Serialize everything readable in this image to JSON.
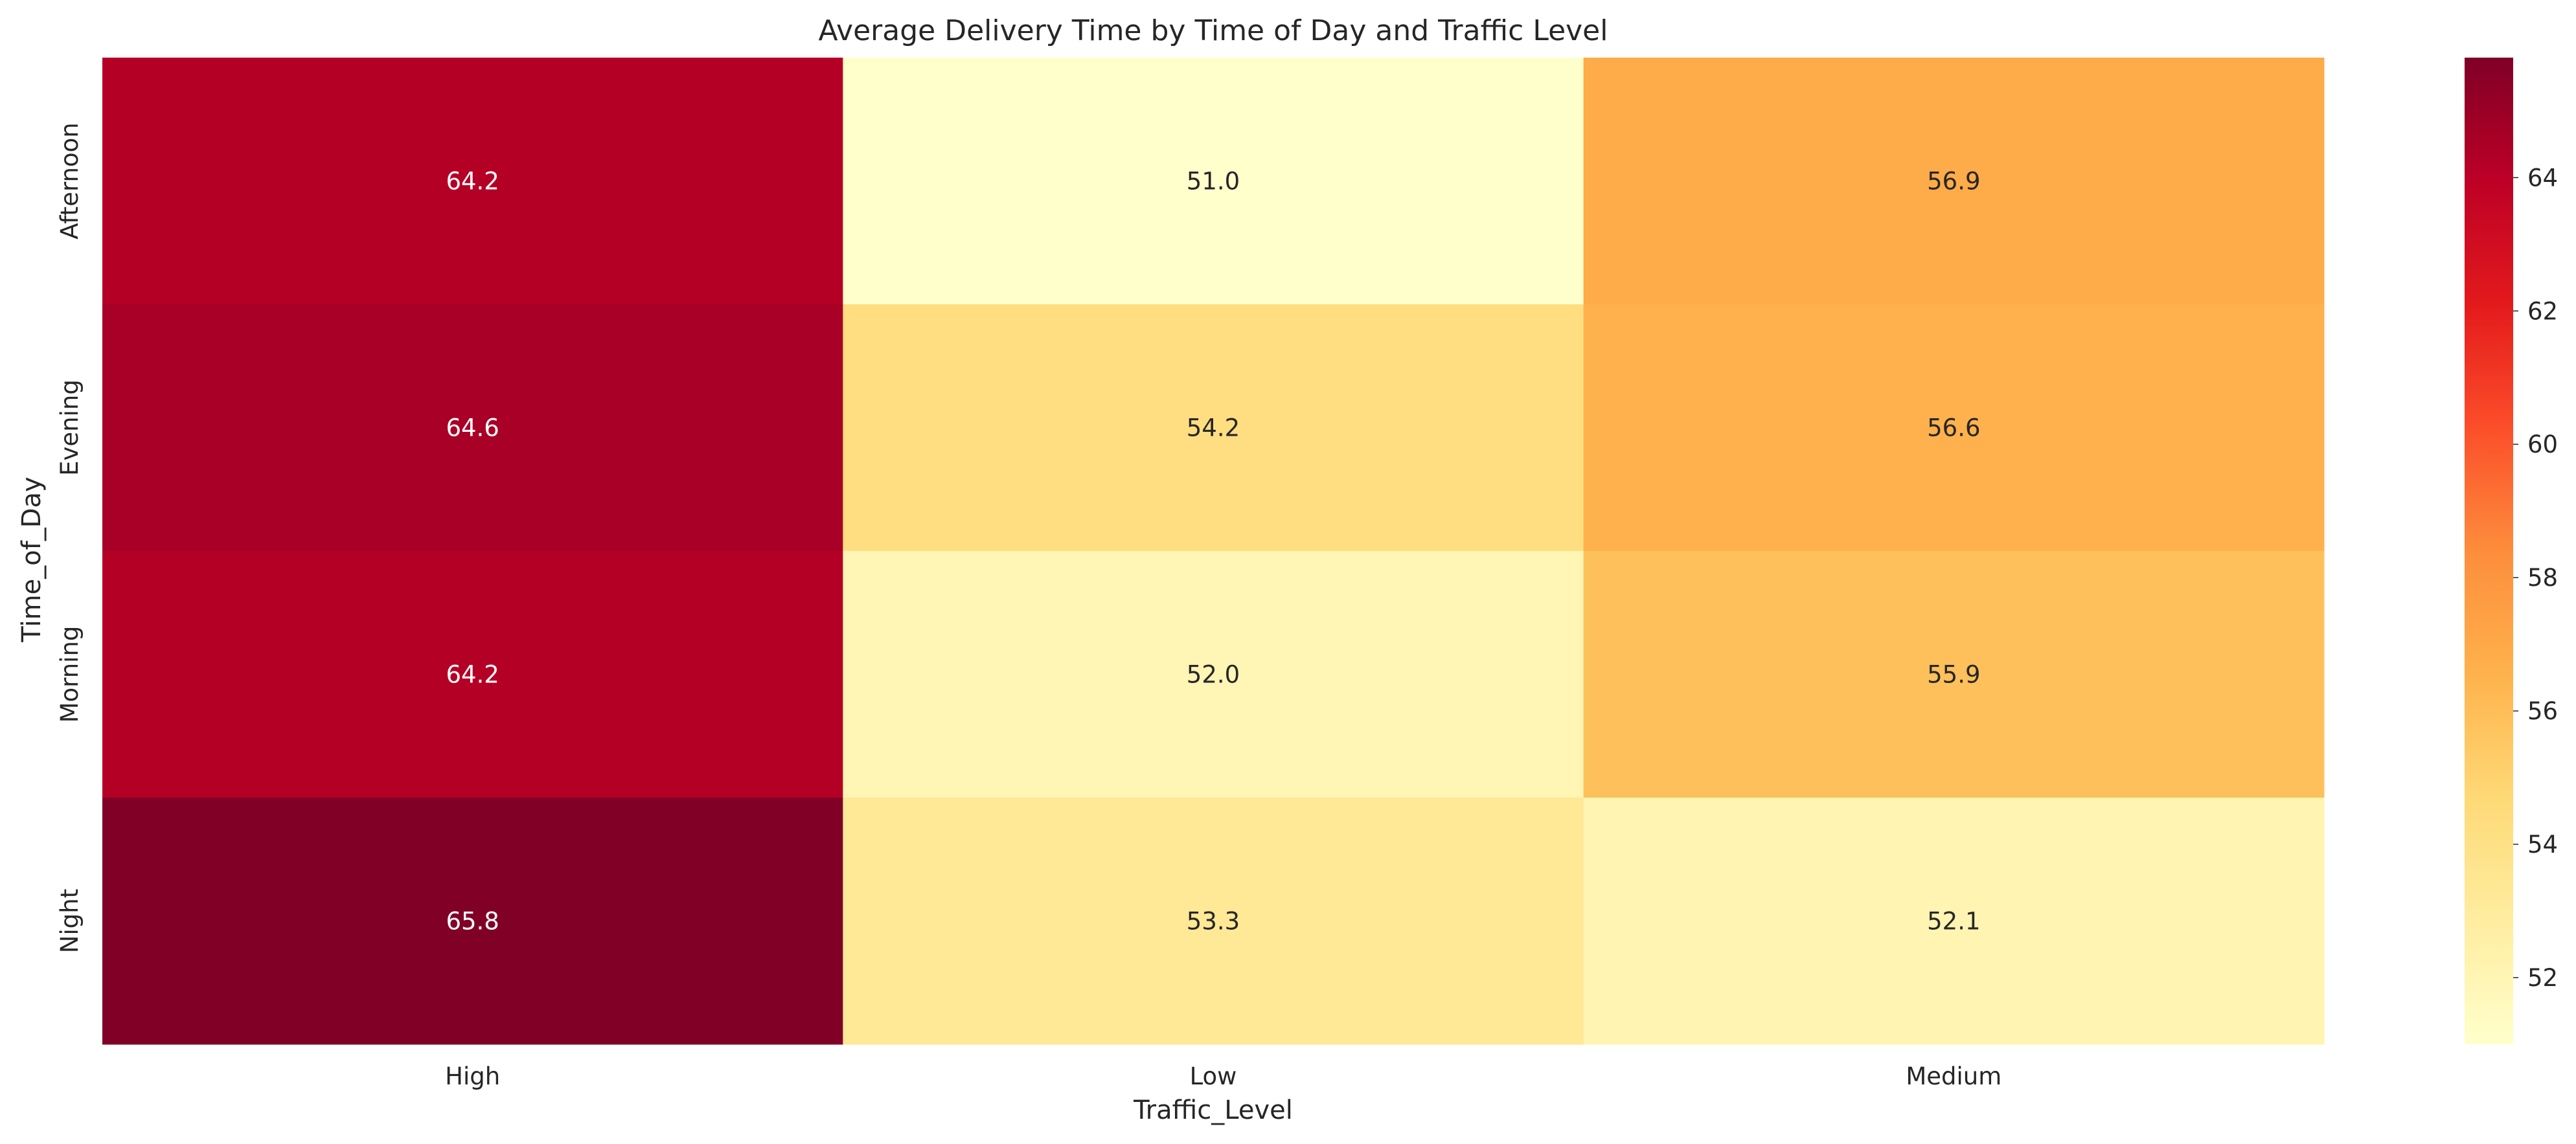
{
  "chart_data": {
    "type": "heatmap",
    "title": "Average Delivery Time by Time of Day and Traffic Level",
    "xlabel": "Traffic_Level",
    "ylabel": "Time_of_Day",
    "x_categories": [
      "High",
      "Low",
      "Medium"
    ],
    "y_categories": [
      "Afternoon",
      "Evening",
      "Morning",
      "Night"
    ],
    "values": [
      [
        64.2,
        51.0,
        56.9
      ],
      [
        64.6,
        54.2,
        56.6
      ],
      [
        64.2,
        52.0,
        55.9
      ],
      [
        65.8,
        53.3,
        52.1
      ]
    ],
    "value_labels": [
      [
        "64.2",
        "51.0",
        "56.9"
      ],
      [
        "64.6",
        "54.2",
        "56.6"
      ],
      [
        "64.2",
        "52.0",
        "55.9"
      ],
      [
        "65.8",
        "53.3",
        "52.1"
      ]
    ],
    "colormap": "YlOrRd",
    "colorbar": {
      "range": [
        51.0,
        65.8
      ],
      "ticks": [
        52,
        54,
        56,
        58,
        60,
        62,
        64
      ],
      "tick_labels": [
        "52",
        "54",
        "56",
        "58",
        "60",
        "62",
        "64"
      ]
    },
    "grid": false,
    "legend": "colorbar-right",
    "colors": {
      "text_dark": "#262626",
      "text_light": "#ffffff",
      "background": "#ffffff"
    }
  }
}
